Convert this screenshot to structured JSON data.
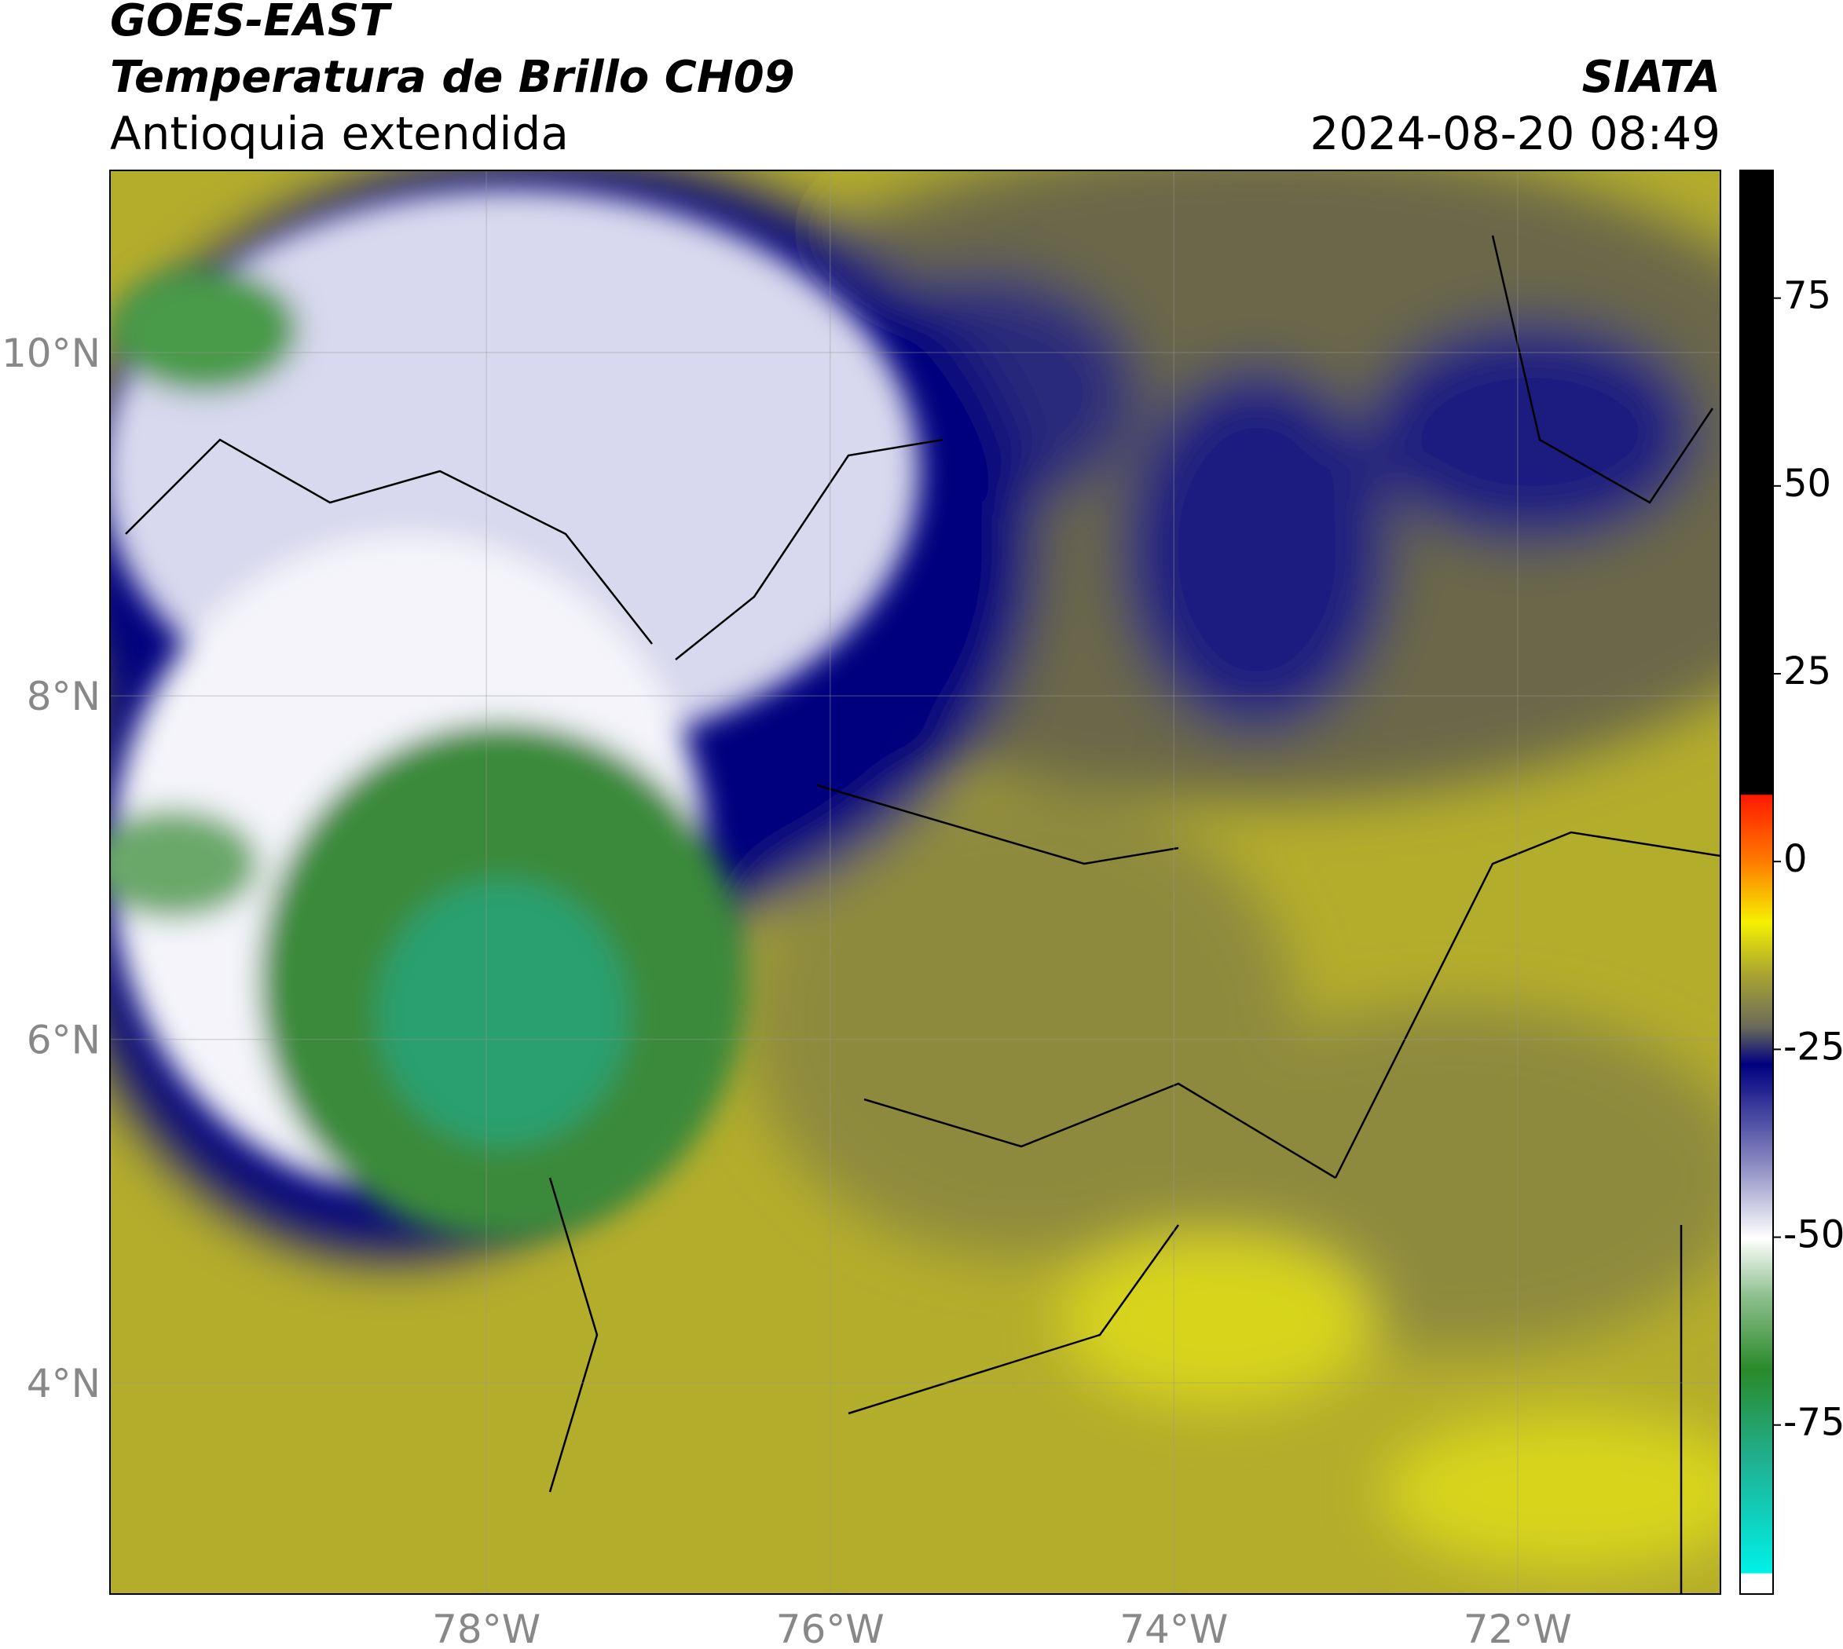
{
  "header": {
    "title": "GOES-EAST",
    "subtitle": "Temperatura de Brillo CH09",
    "region": "Antioquia extendida",
    "agency": "SIATA",
    "timestamp": "2024-08-20 08:49"
  },
  "map": {
    "xlim": [
      -80.19,
      -70.82
    ],
    "ylim": [
      2.77,
      11.06
    ],
    "xticks": [
      {
        "value": -78,
        "label": "78°W"
      },
      {
        "value": -76,
        "label": "76°W"
      },
      {
        "value": -74,
        "label": "74°W"
      },
      {
        "value": -72,
        "label": "72°W"
      }
    ],
    "yticks": [
      {
        "value": 4,
        "label": "4°N"
      },
      {
        "value": 6,
        "label": "6°N"
      },
      {
        "value": 8,
        "label": "8°N"
      },
      {
        "value": 10,
        "label": "10°N"
      }
    ]
  },
  "colorbar": {
    "lim": [
      -97.5,
      92
    ],
    "ticks": [
      -75,
      -50,
      -25,
      0,
      25,
      50,
      75
    ]
  }
}
